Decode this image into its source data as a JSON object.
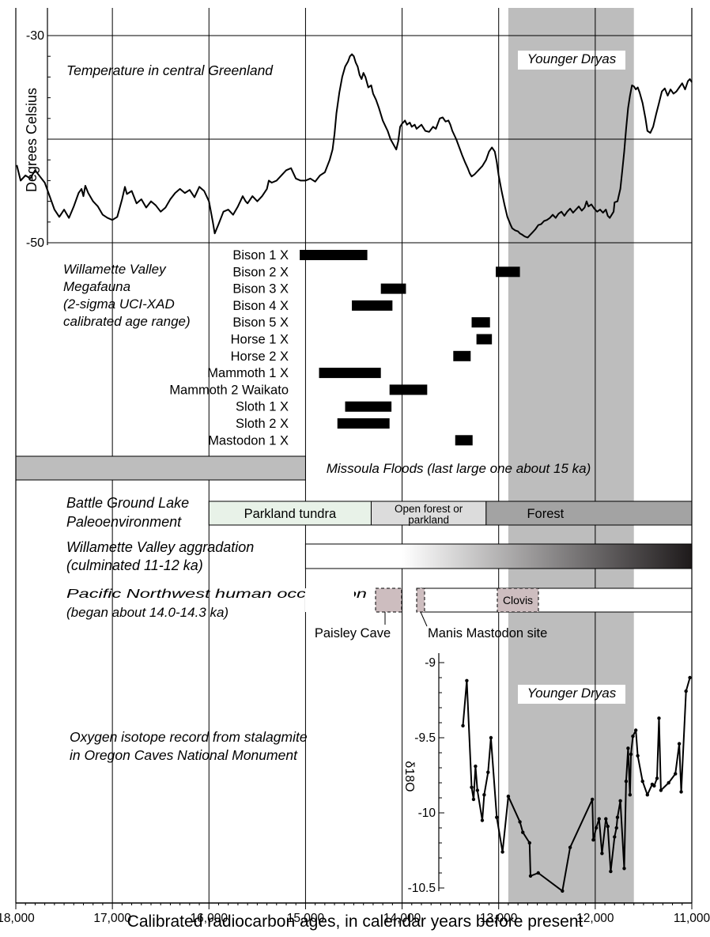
{
  "chart_data": {
    "type": "line",
    "x_axis": {
      "label": "Calibrated radiocarbon ages, in calendar years before present",
      "range": [
        18000,
        11000
      ],
      "ticks": [
        18000,
        17000,
        16000,
        15000,
        14000,
        13000,
        12000,
        11000
      ],
      "tick_labels": [
        "18,000",
        "17,000",
        "16,000",
        "15,000",
        "14,000",
        "13,000",
        "12,000",
        "11,000"
      ]
    },
    "younger_dryas": {
      "label": "Younger Dryas",
      "from": 12900,
      "to": 11600
    },
    "temperature": {
      "label": "Temperature in central Greenland",
      "y_label": "Degrees Celsius",
      "y_range": [
        -50,
        -30
      ],
      "y_ticks": [
        "-30",
        "-40",
        "-50"
      ],
      "points": [
        [
          17990,
          -42.5
        ],
        [
          17950,
          -44.0
        ],
        [
          17900,
          -43.5
        ],
        [
          17850,
          -43.8
        ],
        [
          17800,
          -43.0
        ],
        [
          17750,
          -43.6
        ],
        [
          17700,
          -44.2
        ],
        [
          17650,
          -45.5
        ],
        [
          17600,
          -46.8
        ],
        [
          17550,
          -47.5
        ],
        [
          17500,
          -46.8
        ],
        [
          17450,
          -47.6
        ],
        [
          17400,
          -46.5
        ],
        [
          17350,
          -45.2
        ],
        [
          17320,
          -44.8
        ],
        [
          17300,
          -45.5
        ],
        [
          17280,
          -44.5
        ],
        [
          17250,
          -45.2
        ],
        [
          17200,
          -46.0
        ],
        [
          17150,
          -46.5
        ],
        [
          17100,
          -47.3
        ],
        [
          17050,
          -47.6
        ],
        [
          17000,
          -47.8
        ],
        [
          16950,
          -47.5
        ],
        [
          16920,
          -46.5
        ],
        [
          16900,
          -45.8
        ],
        [
          16870,
          -44.6
        ],
        [
          16850,
          -45.3
        ],
        [
          16800,
          -45.0
        ],
        [
          16750,
          -46.2
        ],
        [
          16700,
          -45.8
        ],
        [
          16650,
          -46.6
        ],
        [
          16600,
          -46.0
        ],
        [
          16550,
          -46.4
        ],
        [
          16500,
          -47.0
        ],
        [
          16450,
          -46.6
        ],
        [
          16400,
          -45.8
        ],
        [
          16350,
          -45.2
        ],
        [
          16300,
          -44.8
        ],
        [
          16250,
          -45.2
        ],
        [
          16200,
          -44.9
        ],
        [
          16150,
          -45.6
        ],
        [
          16100,
          -44.6
        ],
        [
          16050,
          -45.0
        ],
        [
          16000,
          -46.0
        ],
        [
          15960,
          -48.0
        ],
        [
          15940,
          -49.1
        ],
        [
          15900,
          -48.2
        ],
        [
          15850,
          -47.0
        ],
        [
          15800,
          -46.8
        ],
        [
          15750,
          -47.3
        ],
        [
          15700,
          -46.5
        ],
        [
          15650,
          -45.5
        ],
        [
          15620,
          -46.0
        ],
        [
          15600,
          -46.2
        ],
        [
          15550,
          -45.5
        ],
        [
          15500,
          -46.0
        ],
        [
          15450,
          -45.5
        ],
        [
          15400,
          -44.8
        ],
        [
          15380,
          -44.0
        ],
        [
          15350,
          -44.2
        ],
        [
          15300,
          -44.0
        ],
        [
          15250,
          -43.5
        ],
        [
          15200,
          -43.0
        ],
        [
          15150,
          -42.8
        ],
        [
          15100,
          -43.8
        ],
        [
          15050,
          -44.0
        ],
        [
          15000,
          -44.0
        ],
        [
          14950,
          -43.8
        ],
        [
          14900,
          -44.1
        ],
        [
          14850,
          -43.5
        ],
        [
          14800,
          -43.2
        ],
        [
          14750,
          -42.0
        ],
        [
          14720,
          -41.0
        ],
        [
          14700,
          -39.5
        ],
        [
          14680,
          -37.5
        ],
        [
          14650,
          -35.5
        ],
        [
          14620,
          -34.0
        ],
        [
          14590,
          -33.0
        ],
        [
          14560,
          -32.5
        ],
        [
          14540,
          -32.0
        ],
        [
          14520,
          -31.8
        ],
        [
          14500,
          -32.0
        ],
        [
          14480,
          -32.6
        ],
        [
          14460,
          -33.0
        ],
        [
          14440,
          -33.8
        ],
        [
          14420,
          -34.2
        ],
        [
          14400,
          -33.6
        ],
        [
          14380,
          -34.0
        ],
        [
          14350,
          -35.0
        ],
        [
          14320,
          -34.8
        ],
        [
          14300,
          -35.6
        ],
        [
          14270,
          -36.2
        ],
        [
          14240,
          -37.0
        ],
        [
          14200,
          -38.2
        ],
        [
          14170,
          -38.8
        ],
        [
          14150,
          -39.2
        ],
        [
          14120,
          -40.0
        ],
        [
          14090,
          -40.5
        ],
        [
          14060,
          -41.0
        ],
        [
          14040,
          -40.2
        ],
        [
          14020,
          -38.8
        ],
        [
          14000,
          -38.5
        ],
        [
          13970,
          -38.2
        ],
        [
          13950,
          -38.6
        ],
        [
          13920,
          -38.4
        ],
        [
          13900,
          -38.8
        ],
        [
          13870,
          -38.6
        ],
        [
          13850,
          -39.0
        ],
        [
          13800,
          -38.6
        ],
        [
          13760,
          -39.2
        ],
        [
          13720,
          -39.3
        ],
        [
          13680,
          -38.8
        ],
        [
          13650,
          -39.0
        ],
        [
          13610,
          -38.0
        ],
        [
          13580,
          -37.9
        ],
        [
          13550,
          -38.3
        ],
        [
          13520,
          -38.2
        ],
        [
          13500,
          -38.6
        ],
        [
          13480,
          -39.2
        ],
        [
          13440,
          -40.0
        ],
        [
          13400,
          -41.0
        ],
        [
          13380,
          -41.5
        ],
        [
          13350,
          -42.2
        ],
        [
          13320,
          -42.8
        ],
        [
          13300,
          -43.3
        ],
        [
          13280,
          -43.6
        ],
        [
          13250,
          -43.4
        ],
        [
          13210,
          -43.0
        ],
        [
          13170,
          -42.6
        ],
        [
          13130,
          -42.0
        ],
        [
          13100,
          -41.2
        ],
        [
          13070,
          -40.8
        ],
        [
          13040,
          -41.2
        ],
        [
          13020,
          -42.2
        ],
        [
          13000,
          -43.5
        ],
        [
          12970,
          -45.0
        ],
        [
          12940,
          -46.3
        ],
        [
          12910,
          -47.5
        ],
        [
          12880,
          -48.2
        ],
        [
          12860,
          -48.6
        ],
        [
          12830,
          -48.8
        ],
        [
          12800,
          -48.9
        ],
        [
          12780,
          -49.1
        ],
        [
          12760,
          -49.2
        ],
        [
          12730,
          -49.4
        ],
        [
          12700,
          -49.5
        ],
        [
          12680,
          -49.3
        ],
        [
          12650,
          -49.0
        ],
        [
          12620,
          -48.7
        ],
        [
          12590,
          -48.3
        ],
        [
          12560,
          -48.2
        ],
        [
          12530,
          -47.9
        ],
        [
          12500,
          -47.8
        ],
        [
          12470,
          -47.6
        ],
        [
          12440,
          -47.3
        ],
        [
          12410,
          -47.6
        ],
        [
          12380,
          -47.2
        ],
        [
          12350,
          -47.0
        ],
        [
          12320,
          -47.4
        ],
        [
          12290,
          -47.0
        ],
        [
          12260,
          -46.7
        ],
        [
          12230,
          -47.1
        ],
        [
          12200,
          -46.8
        ],
        [
          12170,
          -46.5
        ],
        [
          12140,
          -46.9
        ],
        [
          12110,
          -46.6
        ],
        [
          12090,
          -46.0
        ],
        [
          12070,
          -46.5
        ],
        [
          12040,
          -46.3
        ],
        [
          12010,
          -46.7
        ],
        [
          11980,
          -47.0
        ],
        [
          11950,
          -46.8
        ],
        [
          11920,
          -47.1
        ],
        [
          11890,
          -46.8
        ],
        [
          11870,
          -47.4
        ],
        [
          11850,
          -47.6
        ],
        [
          11810,
          -47.0
        ],
        [
          11800,
          -46.1
        ],
        [
          11770,
          -46.0
        ],
        [
          11740,
          -44.8
        ],
        [
          11720,
          -43.0
        ],
        [
          11700,
          -41.2
        ],
        [
          11680,
          -39.0
        ],
        [
          11660,
          -37.0
        ],
        [
          11640,
          -35.8
        ],
        [
          11620,
          -34.8
        ],
        [
          11600,
          -34.9
        ],
        [
          11580,
          -35.2
        ],
        [
          11560,
          -35.0
        ],
        [
          11540,
          -35.5
        ],
        [
          11510,
          -36.5
        ],
        [
          11480,
          -38.0
        ],
        [
          11460,
          -39.2
        ],
        [
          11430,
          -39.4
        ],
        [
          11400,
          -38.8
        ],
        [
          11370,
          -37.6
        ],
        [
          11340,
          -36.5
        ],
        [
          11310,
          -35.4
        ],
        [
          11280,
          -35.1
        ],
        [
          11250,
          -35.8
        ],
        [
          11220,
          -35.2
        ],
        [
          11190,
          -35.6
        ],
        [
          11160,
          -35.4
        ],
        [
          11130,
          -35.0
        ],
        [
          11100,
          -34.6
        ],
        [
          11070,
          -35.2
        ],
        [
          11040,
          -34.4
        ],
        [
          11020,
          -34.2
        ],
        [
          11000,
          -34.5
        ]
      ]
    },
    "megafauna": {
      "label_lines": [
        "Willamette Valley",
        "Megafauna",
        "(2-sigma UCI-XAD",
        "calibrated age range)"
      ],
      "items": [
        {
          "label": "Bison 1 X",
          "from": 15060,
          "to": 14360
        },
        {
          "label": "Bison 2 X",
          "from": 13030,
          "to": 12780
        },
        {
          "label": "Bison 3 X",
          "from": 14220,
          "to": 13960
        },
        {
          "label": "Bison 4 X",
          "from": 14520,
          "to": 14100
        },
        {
          "label": "Bison 5 X",
          "from": 13280,
          "to": 13090
        },
        {
          "label": "Horse 1 X",
          "from": 13230,
          "to": 13070
        },
        {
          "label": "Horse 2 X",
          "from": 13470,
          "to": 13290
        },
        {
          "label": "Mammoth 1 X",
          "from": 14860,
          "to": 14220
        },
        {
          "label": "Mammoth 2 Waikato",
          "from": 14130,
          "to": 13740
        },
        {
          "label": "Sloth 1 X",
          "from": 14590,
          "to": 14110
        },
        {
          "label": "Sloth 2 X",
          "from": 14670,
          "to": 14130
        },
        {
          "label": "Mastodon 1 X",
          "from": 13450,
          "to": 13270
        }
      ]
    },
    "missoula_floods": {
      "label": "Missoula Floods (last large one about 15 ka)",
      "from": 18000,
      "to": 15000
    },
    "battle_ground_lake": {
      "label_lines": [
        "Battle Ground Lake",
        "Paleoenvironment"
      ],
      "segments": [
        {
          "label_lines": [
            "Parkland tundra"
          ],
          "from": 16000,
          "to": 14320,
          "color": "#e8f2e8"
        },
        {
          "label_lines": [
            "Open forest or",
            "parkland"
          ],
          "from": 14320,
          "to": 13130,
          "color": "#dcdcdc"
        },
        {
          "label_lines": [
            "Forest"
          ],
          "from": 13130,
          "to": 11000,
          "color": "#a3a3a3"
        }
      ]
    },
    "aggradation": {
      "label_lines": [
        "Willamette Valley aggradation",
        "(culminated 11-12 ka)"
      ],
      "from": 15000,
      "to": 11000,
      "gradient_from": "#ffffff",
      "gradient_to": "#1e1a1b"
    },
    "human_occupation": {
      "label_lines": [
        "Pacific Northwest human occupation",
        "(began about 14.0-14.3 ka)"
      ],
      "from": 14300,
      "to": 11000,
      "sites": [
        {
          "label": "Paisley Cave",
          "from": 14270,
          "to": 14020
        },
        {
          "label": "Manis Mastodon site",
          "from": 13850,
          "to": 13790
        },
        {
          "label": "Clovis",
          "from": 12690,
          "to": 12600
        }
      ],
      "site_color": "#cdbdbf"
    },
    "oxygen_isotope": {
      "label_lines": [
        "Oxygen isotope record from stalagmite",
        "in Oregon Caves National Monument"
      ],
      "y_label": "δ18O",
      "y_range": [
        -10.5,
        -9
      ],
      "y_ticks": [
        "-9",
        "-9.5",
        "-10",
        "-10.5"
      ],
      "younger_dryas_label": "Younger Dryas",
      "points": [
        [
          13370,
          -9.42
        ],
        [
          13330,
          -9.12
        ],
        [
          13280,
          -9.83
        ],
        [
          13260,
          -9.91
        ],
        [
          13240,
          -9.69
        ],
        [
          13220,
          -9.85
        ],
        [
          13170,
          -10.05
        ],
        [
          13150,
          -9.88
        ],
        [
          13110,
          -9.73
        ],
        [
          13080,
          -9.5
        ],
        [
          13020,
          -10.03
        ],
        [
          12960,
          -10.26
        ],
        [
          12900,
          -9.89
        ],
        [
          12780,
          -10.06
        ],
        [
          12750,
          -10.13
        ],
        [
          12680,
          -10.2
        ],
        [
          12670,
          -10.42
        ],
        [
          12590,
          -10.4
        ],
        [
          12340,
          -10.52
        ],
        [
          12260,
          -10.23
        ],
        [
          12030,
          -9.91
        ],
        [
          12020,
          -10.18
        ],
        [
          11990,
          -10.1
        ],
        [
          11960,
          -10.04
        ],
        [
          11930,
          -10.27
        ],
        [
          11890,
          -10.04
        ],
        [
          11870,
          -10.09
        ],
        [
          11840,
          -10.39
        ],
        [
          11800,
          -10.16
        ],
        [
          11780,
          -10.1
        ],
        [
          11770,
          -10.03
        ],
        [
          11740,
          -9.92
        ],
        [
          11700,
          -10.37
        ],
        [
          11680,
          -9.79
        ],
        [
          11660,
          -9.57
        ],
        [
          11640,
          -9.88
        ],
        [
          11630,
          -9.61
        ],
        [
          11610,
          -9.49
        ],
        [
          11580,
          -9.45
        ],
        [
          11560,
          -9.62
        ],
        [
          11510,
          -9.79
        ],
        [
          11460,
          -9.88
        ],
        [
          11410,
          -9.81
        ],
        [
          11390,
          -9.82
        ],
        [
          11360,
          -9.77
        ],
        [
          11340,
          -9.37
        ],
        [
          11320,
          -9.85
        ],
        [
          11240,
          -9.8
        ],
        [
          11170,
          -9.74
        ],
        [
          11130,
          -9.54
        ],
        [
          11110,
          -9.86
        ],
        [
          11060,
          -9.19
        ],
        [
          11020,
          -9.1
        ]
      ]
    },
    "colors": {
      "shade": "#bdbdbd",
      "floods": "#bdbdbd",
      "line": "#000000"
    }
  }
}
